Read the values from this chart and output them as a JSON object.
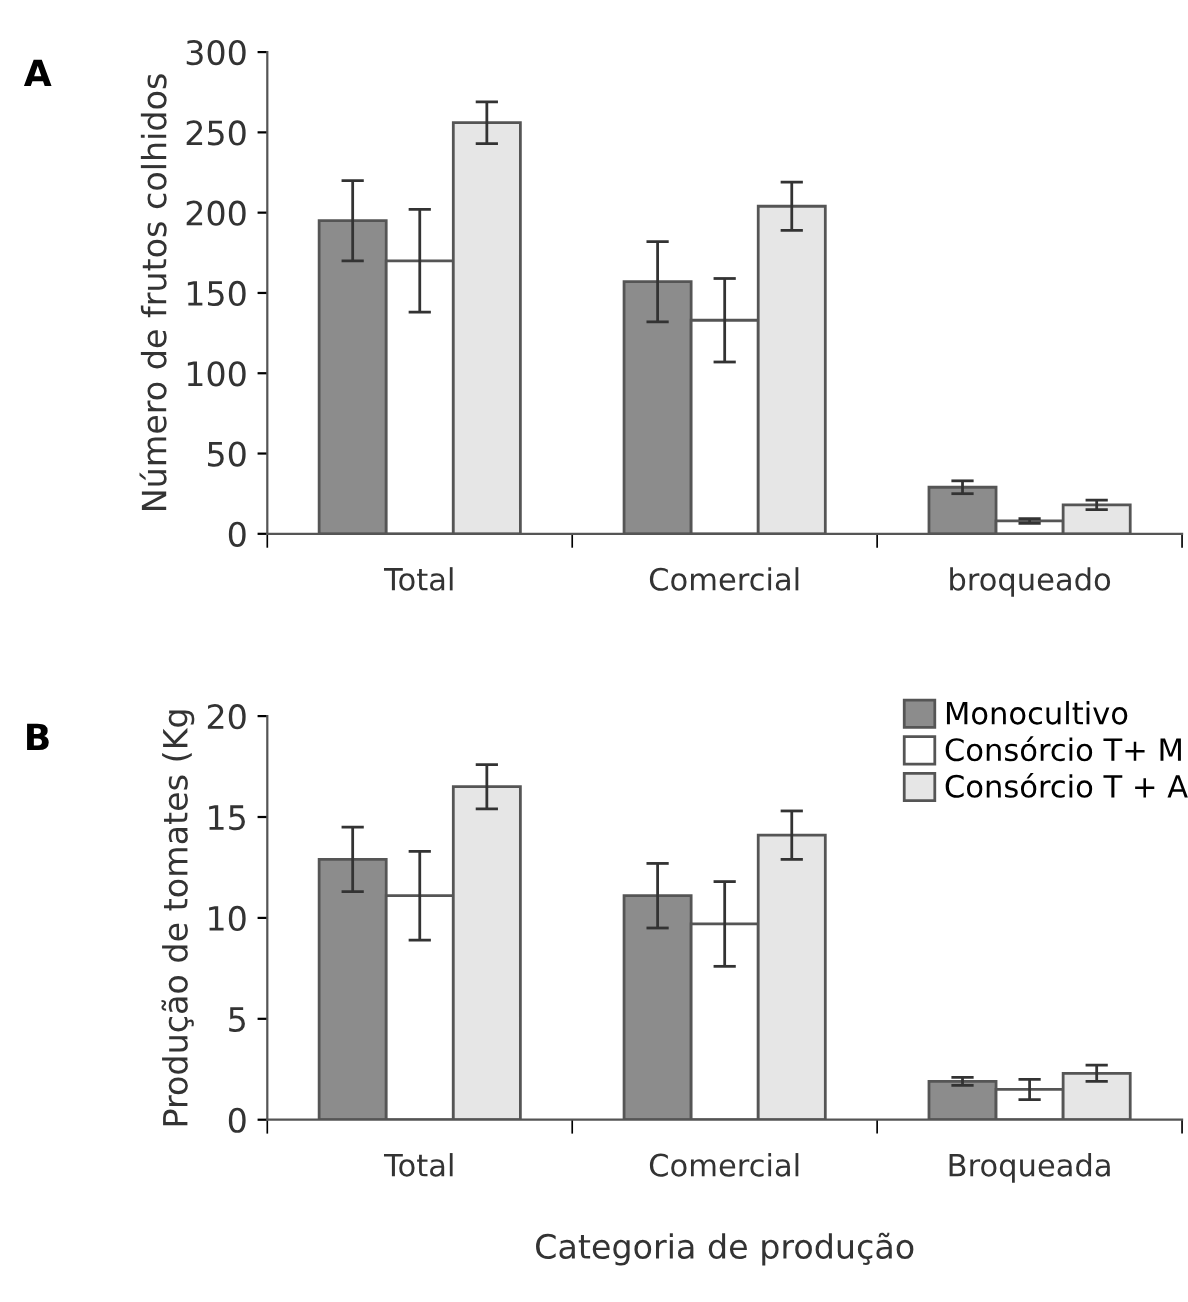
{
  "chart_data": [
    {
      "type": "bar",
      "title": "A",
      "ylabel": "Número de frutos colhidos",
      "categories": [
        "Total",
        "Comercial",
        "broqueado"
      ],
      "ylim": [
        0,
        300
      ],
      "yticks": [
        0,
        50,
        100,
        150,
        200,
        250,
        300
      ],
      "grid": false,
      "legend": false,
      "series": [
        {
          "color": "#8c8c8c",
          "values": [
            195,
            157,
            29
          ],
          "errors": [
            25,
            25,
            4
          ]
        },
        {
          "color": "#ffffff",
          "values": [
            170,
            133,
            8
          ],
          "errors": [
            32,
            26,
            1.5
          ]
        },
        {
          "color": "#e6e6e6",
          "values": [
            256,
            204,
            18
          ],
          "errors": [
            13,
            15,
            3
          ]
        }
      ]
    },
    {
      "type": "bar",
      "title": "B",
      "ylabel": "Produção de tomates (Kg",
      "xlabel": "Categoria de produção",
      "categories": [
        "Total",
        "Comercial",
        "Broqueada"
      ],
      "ylim": [
        0,
        20
      ],
      "yticks": [
        0,
        5,
        10,
        15,
        20
      ],
      "grid": false,
      "legend": "top right",
      "series": [
        {
          "name": "Monocultivo",
          "color": "#8c8c8c",
          "values": [
            12.9,
            11.1,
            1.9
          ],
          "errors": [
            1.6,
            1.6,
            0.2
          ]
        },
        {
          "name": "Consórcio T+ M",
          "color": "#ffffff",
          "values": [
            11.1,
            9.7,
            1.5
          ],
          "errors": [
            2.2,
            2.1,
            0.5
          ]
        },
        {
          "name": "Consórcio T + A",
          "color": "#e6e6e6",
          "values": [
            16.5,
            14.1,
            2.3
          ],
          "errors": [
            1.1,
            1.2,
            0.4
          ]
        }
      ]
    }
  ]
}
